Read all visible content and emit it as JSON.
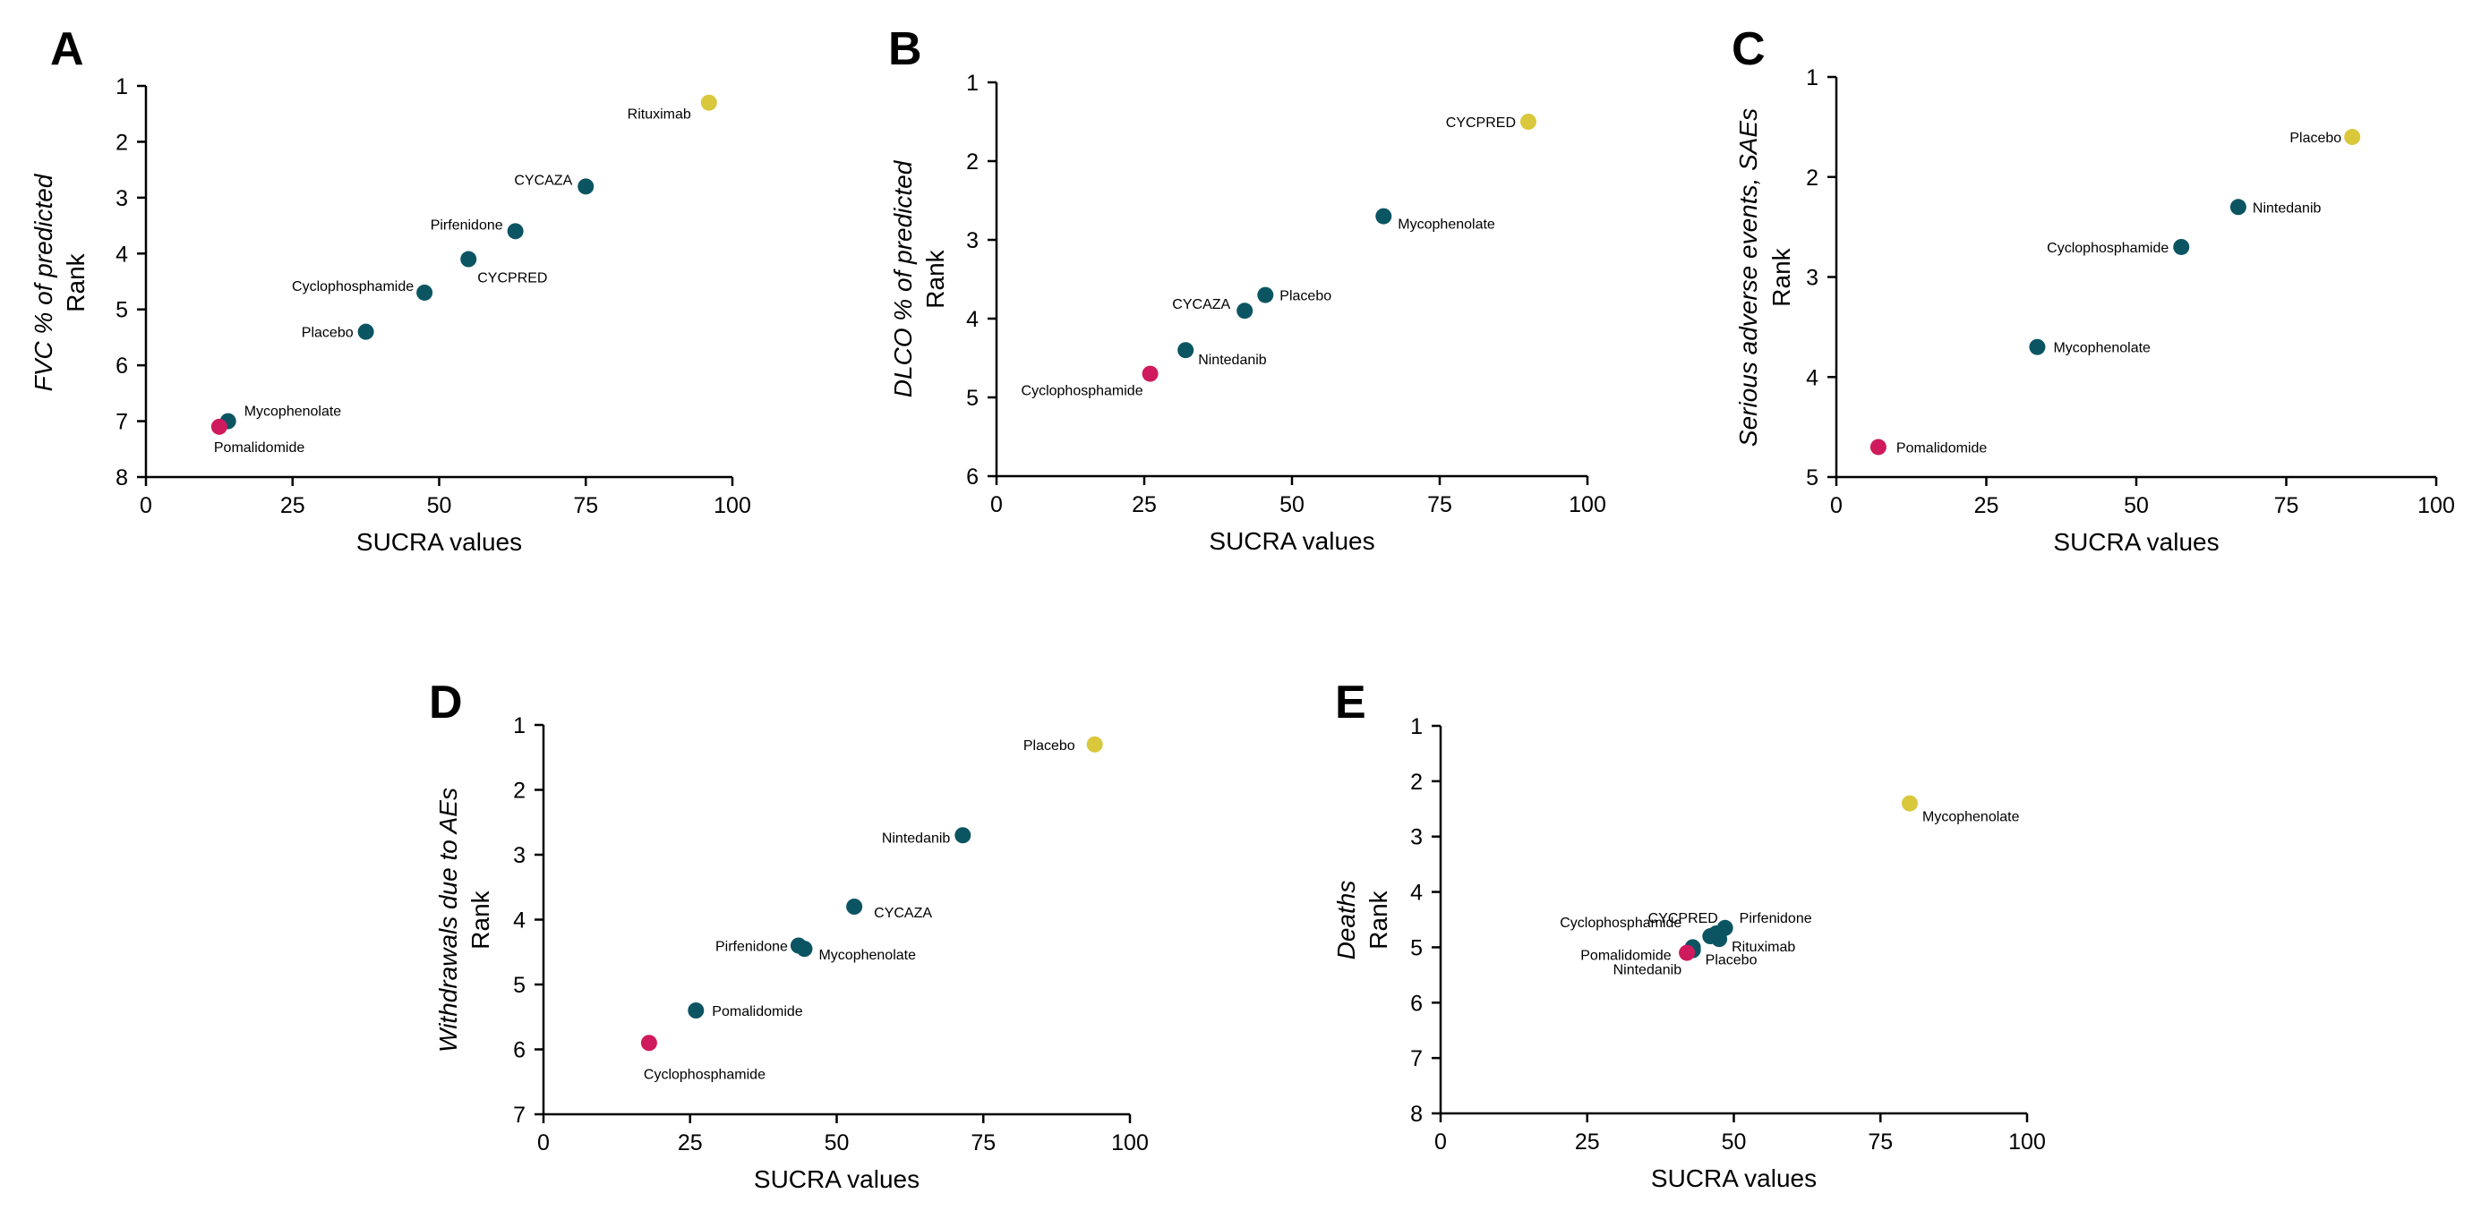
{
  "colors": {
    "top": "#d9c83c",
    "middle": "#0b5563",
    "bottom": "#cf1b5d"
  },
  "chart_data": [
    {
      "panel": "A",
      "type": "scatter",
      "xlabel": "SUCRA values",
      "ylabel_italic": "FVC % of predicted",
      "ylabel": "Rank",
      "xlim": [
        0,
        100
      ],
      "ylim": [
        1,
        8
      ],
      "xticks": [
        "0",
        "25",
        "50",
        "75",
        "100"
      ],
      "yticks": [
        "1",
        "2",
        "3",
        "4",
        "5",
        "6",
        "7",
        "8"
      ],
      "points": [
        {
          "label": "Rituximab",
          "x": 96,
          "y": 1.3,
          "color": "top"
        },
        {
          "label": "CYCAZA",
          "x": 75,
          "y": 2.8,
          "color": "middle"
        },
        {
          "label": "Pirfenidone",
          "x": 63,
          "y": 3.6,
          "color": "middle"
        },
        {
          "label": "CYCPRED",
          "x": 55,
          "y": 4.1,
          "color": "middle"
        },
        {
          "label": "Cyclophosphamide",
          "x": 47.5,
          "y": 4.7,
          "color": "middle"
        },
        {
          "label": "Placebo",
          "x": 37.5,
          "y": 5.4,
          "color": "middle"
        },
        {
          "label": "Mycophenolate",
          "x": 14,
          "y": 7.0,
          "color": "middle"
        },
        {
          "label": "Pomalidomide",
          "x": 12.5,
          "y": 7.1,
          "color": "bottom"
        }
      ]
    },
    {
      "panel": "B",
      "type": "scatter",
      "xlabel": "SUCRA values",
      "ylabel_italic": "DLCO % of predicted",
      "ylabel": "Rank",
      "xlim": [
        0,
        100
      ],
      "ylim": [
        1,
        6
      ],
      "xticks": [
        "0",
        "25",
        "50",
        "75",
        "100"
      ],
      "yticks": [
        "1",
        "2",
        "3",
        "4",
        "5",
        "6"
      ],
      "points": [
        {
          "label": "CYCPRED",
          "x": 90,
          "y": 1.5,
          "color": "top"
        },
        {
          "label": "Mycophenolate",
          "x": 65.5,
          "y": 2.7,
          "color": "middle"
        },
        {
          "label": "Placebo",
          "x": 45.5,
          "y": 3.7,
          "color": "middle"
        },
        {
          "label": "CYCAZA",
          "x": 42,
          "y": 3.9,
          "color": "middle"
        },
        {
          "label": "Nintedanib",
          "x": 32,
          "y": 4.4,
          "color": "middle"
        },
        {
          "label": "Cyclophosphamide",
          "x": 26,
          "y": 4.7,
          "color": "bottom"
        }
      ]
    },
    {
      "panel": "C",
      "type": "scatter",
      "xlabel": "SUCRA values",
      "ylabel_italic": "Serious adverse events, SAEs",
      "ylabel": "Rank",
      "xlim": [
        0,
        100
      ],
      "ylim": [
        1,
        5
      ],
      "xticks": [
        "0",
        "25",
        "50",
        "75",
        "100"
      ],
      "yticks": [
        "1",
        "2",
        "3",
        "4",
        "5"
      ],
      "points": [
        {
          "label": "Placebo",
          "x": 86,
          "y": 1.6,
          "color": "top"
        },
        {
          "label": "Nintedanib",
          "x": 67,
          "y": 2.3,
          "color": "middle"
        },
        {
          "label": "Cyclophosphamide",
          "x": 57.5,
          "y": 2.7,
          "color": "middle"
        },
        {
          "label": "Mycophenolate",
          "x": 33.5,
          "y": 3.7,
          "color": "middle"
        },
        {
          "label": "Pomalidomide",
          "x": 7,
          "y": 4.7,
          "color": "bottom"
        }
      ]
    },
    {
      "panel": "D",
      "type": "scatter",
      "xlabel": "SUCRA values",
      "ylabel_italic": "Withdrawals due to AEs",
      "ylabel": "Rank",
      "xlim": [
        0,
        100
      ],
      "ylim": [
        1,
        7
      ],
      "xticks": [
        "0",
        "25",
        "50",
        "75",
        "100"
      ],
      "yticks": [
        "1",
        "2",
        "3",
        "4",
        "5",
        "6",
        "7"
      ],
      "points": [
        {
          "label": "Placebo",
          "x": 94,
          "y": 1.3,
          "color": "top"
        },
        {
          "label": "Nintedanib",
          "x": 71.5,
          "y": 2.7,
          "color": "middle"
        },
        {
          "label": "CYCAZA",
          "x": 53,
          "y": 3.8,
          "color": "middle"
        },
        {
          "label": "Pirfenidone",
          "x": 43.5,
          "y": 4.4,
          "color": "middle"
        },
        {
          "label": "Mycophenolate",
          "x": 44.5,
          "y": 4.45,
          "color": "middle"
        },
        {
          "label": "Pomalidomide",
          "x": 26,
          "y": 5.4,
          "color": "middle"
        },
        {
          "label": "Cyclophosphamide",
          "x": 18,
          "y": 5.9,
          "color": "bottom"
        }
      ]
    },
    {
      "panel": "E",
      "type": "scatter",
      "xlabel": "SUCRA values",
      "ylabel_italic": "Deaths",
      "ylabel": "Rank",
      "xlim": [
        0,
        100
      ],
      "ylim": [
        1,
        8
      ],
      "xticks": [
        "0",
        "25",
        "50",
        "75",
        "100"
      ],
      "yticks": [
        "1",
        "2",
        "3",
        "4",
        "5",
        "6",
        "7",
        "8"
      ],
      "points": [
        {
          "label": "Mycophenolate",
          "x": 80,
          "y": 2.4,
          "color": "top"
        },
        {
          "label": "Pirfenidone",
          "x": 48.5,
          "y": 4.65,
          "color": "middle"
        },
        {
          "label": "CYCPRED",
          "x": 47,
          "y": 4.75,
          "color": "middle"
        },
        {
          "label": "Cyclophosphamide",
          "x": 46,
          "y": 4.8,
          "color": "middle"
        },
        {
          "label": "Rituximab",
          "x": 47.5,
          "y": 4.85,
          "color": "middle"
        },
        {
          "label": "Pomalidomide",
          "x": 43,
          "y": 5.0,
          "color": "middle"
        },
        {
          "label": "Placebo",
          "x": 43,
          "y": 5.05,
          "color": "middle"
        },
        {
          "label": "Nintedanib",
          "x": 42,
          "y": 5.1,
          "color": "bottom"
        }
      ]
    }
  ]
}
